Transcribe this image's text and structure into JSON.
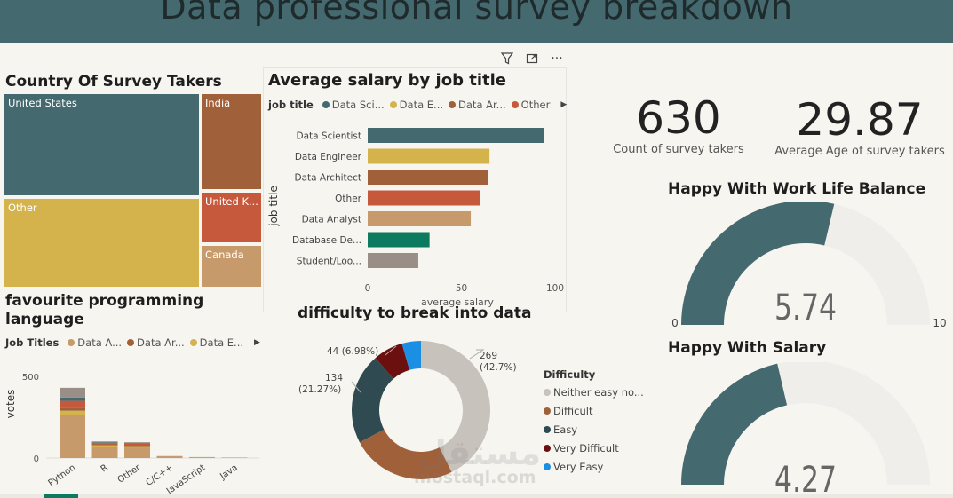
{
  "page": {
    "title": "Data professional survey breakdown"
  },
  "toolbar": {
    "filter_icon": "filter-icon",
    "focus_icon": "focus-mode-icon",
    "more_icon": "more-options-icon",
    "more_label": "···"
  },
  "country": {
    "title": "Country Of Survey Takers",
    "tiles": [
      {
        "label": "United States",
        "color": "#44696f"
      },
      {
        "label": "Other",
        "color": "#d4b24c"
      },
      {
        "label": "India",
        "color": "#a0603a"
      },
      {
        "label": "United K...",
        "color": "#c6583c"
      },
      {
        "label": "Canada",
        "color": "#c79a6b"
      }
    ]
  },
  "salary": {
    "title": "Average salary by job title",
    "legend_title": "job title",
    "legend": [
      {
        "label": "Data Sci...",
        "color": "#44696f"
      },
      {
        "label": "Data E...",
        "color": "#d4b24c"
      },
      {
        "label": "Data Ar...",
        "color": "#a0603a"
      },
      {
        "label": "Other",
        "color": "#c6583c"
      }
    ],
    "legend_arrow": "▶",
    "chart_data": {
      "type": "bar",
      "orientation": "horizontal",
      "categories": [
        "Data Scientist",
        "Data Engineer",
        "Data Architect",
        "Other",
        "Data Analyst",
        "Database De...",
        "Student/Loo..."
      ],
      "values": [
        94,
        65,
        64,
        60,
        55,
        33,
        27
      ],
      "colors": [
        "#44696f",
        "#d4b24c",
        "#a0603a",
        "#c6583c",
        "#c79a6b",
        "#0b7a5e",
        "#9a8f86"
      ],
      "xticks": [
        0,
        50,
        100
      ],
      "xlim": [
        0,
        100
      ],
      "ylabel": "job title",
      "xlabel": "average salary"
    }
  },
  "kpis": [
    {
      "value": "630",
      "label": "Count of survey takers"
    },
    {
      "value": "29.87",
      "label": "Average Age of survey takers"
    }
  ],
  "gauges": [
    {
      "title": "Happy With Work Life Balance",
      "value": 5.74,
      "value_text": "5.74",
      "min": 0,
      "max": 10,
      "min_text": "0",
      "max_text": "10",
      "fill": "#44696f",
      "track": "#efeeeb"
    },
    {
      "title": "Happy With Salary",
      "value": 4.27,
      "value_text": "4.27",
      "min": 0,
      "max": 10,
      "fill": "#44696f",
      "track": "#efeeeb"
    }
  ],
  "languages": {
    "title_line1": "favourite programming",
    "title_line2": "language",
    "legend_title": "Job Titles",
    "legend": [
      {
        "label": "Data A...",
        "color": "#c79a6b"
      },
      {
        "label": "Data Ar...",
        "color": "#a0603a"
      },
      {
        "label": "Data E...",
        "color": "#d4b24c"
      }
    ],
    "legend_arrow": "▶",
    "chart_data": {
      "type": "bar",
      "stacked": true,
      "categories": [
        "Python",
        "R",
        "Other",
        "C/C++",
        "JavaScript",
        "Java"
      ],
      "series": [
        {
          "name": "Data A...",
          "color": "#c79a6b",
          "values": [
            265,
            70,
            65,
            8,
            5,
            3
          ]
        },
        {
          "name": "Data E...",
          "color": "#d4b24c",
          "values": [
            25,
            8,
            8,
            1,
            1,
            0
          ]
        },
        {
          "name": "Data Ar...",
          "color": "#a0603a",
          "values": [
            15,
            6,
            6,
            1,
            0,
            0
          ]
        },
        {
          "name": "",
          "color": "#c6583c",
          "values": [
            45,
            8,
            8,
            1,
            0,
            0
          ]
        },
        {
          "name": "",
          "color": "#44696f",
          "values": [
            20,
            4,
            4,
            0,
            0,
            0
          ]
        },
        {
          "name": "",
          "color": "#9a8f86",
          "values": [
            60,
            6,
            6,
            1,
            0,
            0
          ]
        }
      ],
      "yticks": [
        0,
        500
      ],
      "ylim": [
        0,
        500
      ],
      "ylabel": "votes"
    }
  },
  "difficulty": {
    "title": "difficulty to break into data",
    "legend_title": "Difficulty",
    "chart_data": {
      "type": "pie",
      "donut": true,
      "categories": [
        "Neither easy no...",
        "Difficult",
        "Easy",
        "Very Difficult",
        "Very Easy"
      ],
      "values": [
        269,
        155,
        134,
        44,
        28
      ],
      "colors": [
        "#c8c2bd",
        "#a0603a",
        "#2f4a50",
        "#6b0f0f",
        "#1a8fe3"
      ],
      "labels": [
        {
          "line1": "269",
          "line2": "(42.7%)"
        },
        {
          "line1": "",
          "line2": ""
        },
        {
          "line1": "134",
          "line2": "(21.27%)"
        },
        {
          "line1": "44 (6.98%)",
          "line2": ""
        },
        {
          "line1": "",
          "line2": ""
        }
      ]
    }
  },
  "watermark": {
    "arabic": "مستقل",
    "latin": "mostaql.com"
  }
}
